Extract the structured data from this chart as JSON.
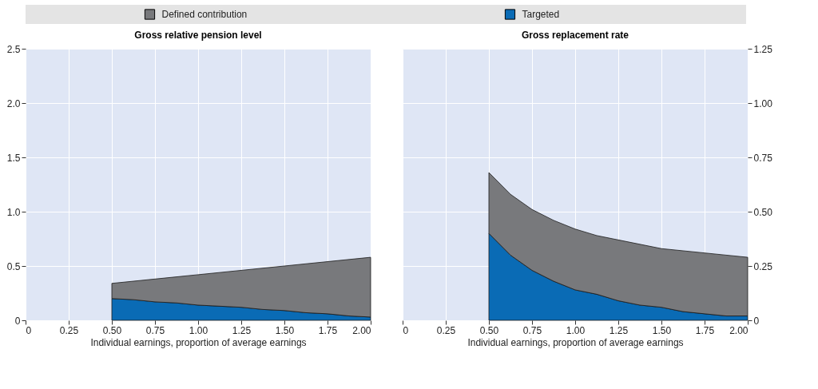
{
  "chart_data": [
    {
      "type": "area",
      "stacked": true,
      "title": "Gross relative pension level",
      "xlabel": "Individual earnings, proportion of average earnings",
      "grid": true,
      "legend": "top",
      "x": [
        0.5,
        0.625,
        0.75,
        0.875,
        1.0,
        1.125,
        1.25,
        1.375,
        1.5,
        1.625,
        1.75,
        1.875,
        2.0
      ],
      "series": [
        {
          "name": "Targeted",
          "color": "#0a6bb5",
          "values": [
            0.2,
            0.19,
            0.17,
            0.16,
            0.14,
            0.13,
            0.12,
            0.1,
            0.09,
            0.07,
            0.06,
            0.04,
            0.03
          ]
        },
        {
          "name": "Defined contribution",
          "color": "#78797c",
          "values": [
            0.14,
            0.17,
            0.21,
            0.24,
            0.28,
            0.31,
            0.34,
            0.38,
            0.41,
            0.45,
            0.48,
            0.52,
            0.55
          ]
        }
      ],
      "xlim": [
        0,
        2
      ],
      "xticks": [
        0,
        0.25,
        {
          "value": 0.5,
          "label": "0.50"
        },
        0.75,
        {
          "value": 1,
          "label": "1.00"
        },
        1.25,
        {
          "value": 1.5,
          "label": "1.50"
        },
        1.75,
        {
          "value": 2,
          "label": "2.00"
        }
      ],
      "ylim": [
        0,
        2.5
      ],
      "yticks": [
        0,
        0.5,
        {
          "value": 1,
          "label": "1.0"
        },
        1.5,
        {
          "value": 2,
          "label": "2.0"
        },
        2.5
      ]
    },
    {
      "type": "area",
      "stacked": true,
      "title": "Gross replacement rate",
      "xlabel": "Individual earnings, proportion of average earnings",
      "grid": true,
      "legend": "top",
      "x": [
        0.5,
        0.625,
        0.75,
        0.875,
        1.0,
        1.125,
        1.25,
        1.375,
        1.5,
        1.625,
        1.75,
        1.875,
        2.0
      ],
      "series": [
        {
          "name": "Targeted",
          "color": "#0a6bb5",
          "values": [
            0.4,
            0.3,
            0.23,
            0.18,
            0.14,
            0.12,
            0.09,
            0.07,
            0.06,
            0.04,
            0.03,
            0.02,
            0.02
          ]
        },
        {
          "name": "Defined contribution",
          "color": "#78797c",
          "values": [
            0.28,
            0.28,
            0.28,
            0.28,
            0.28,
            0.27,
            0.28,
            0.28,
            0.27,
            0.28,
            0.28,
            0.28,
            0.27
          ]
        }
      ],
      "xlim": [
        0,
        2
      ],
      "xticks": [
        0,
        0.25,
        {
          "value": 0.5,
          "label": "0.50"
        },
        0.75,
        {
          "value": 1,
          "label": "1.00"
        },
        1.25,
        {
          "value": 1.5,
          "label": "1.50"
        },
        1.75,
        {
          "value": 2,
          "label": "2.00"
        }
      ],
      "ylim": [
        0,
        1.25
      ],
      "yticks": [
        0,
        0.25,
        {
          "value": 0.5,
          "label": "0.50"
        },
        0.75,
        {
          "value": 1,
          "label": "1.00"
        },
        1.25
      ]
    }
  ]
}
